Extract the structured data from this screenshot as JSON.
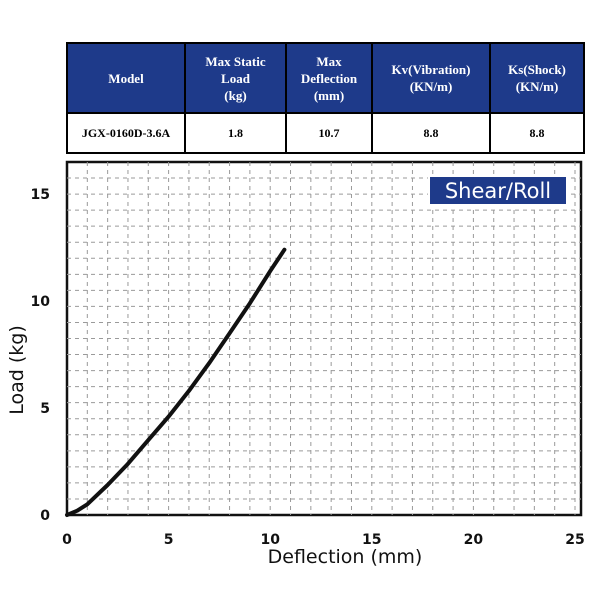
{
  "spec_table": {
    "headers": [
      "Model",
      "Max Static\nLoad\n(kg)",
      "Max\nDeflection\n(mm)",
      "Kv(Vibration)\n(KN/m)",
      "Ks(Shock)\n(KN/m)"
    ],
    "row": [
      "JGX-0160D-3.6A",
      "1.8",
      "10.7",
      "8.8",
      "8.8"
    ]
  },
  "colors": {
    "header_bg": "#1e3a8a",
    "badge_bg": "#1e3a8a",
    "curve": "#111111",
    "grid": "#9a9a9a"
  },
  "chart_data": {
    "type": "line",
    "badge": "Shear/Roll",
    "xlabel": "Deflection (mm)",
    "ylabel": "Load (kg)",
    "xlim": [
      0,
      25
    ],
    "ylim": [
      0,
      16.5
    ],
    "x_ticks": [
      0,
      5,
      10,
      15,
      20,
      25
    ],
    "y_ticks": [
      0,
      5,
      10,
      15
    ],
    "grid": true,
    "series": [
      {
        "x": [
          0,
          0.5,
          1.0,
          2.0,
          3.0,
          4.0,
          5.0,
          6.0,
          7.0,
          8.0,
          9.0,
          10.0,
          10.7
        ],
        "y": [
          0,
          0.2,
          0.5,
          1.4,
          2.4,
          3.5,
          4.6,
          5.8,
          7.1,
          8.5,
          9.9,
          11.4,
          12.4
        ]
      }
    ]
  }
}
